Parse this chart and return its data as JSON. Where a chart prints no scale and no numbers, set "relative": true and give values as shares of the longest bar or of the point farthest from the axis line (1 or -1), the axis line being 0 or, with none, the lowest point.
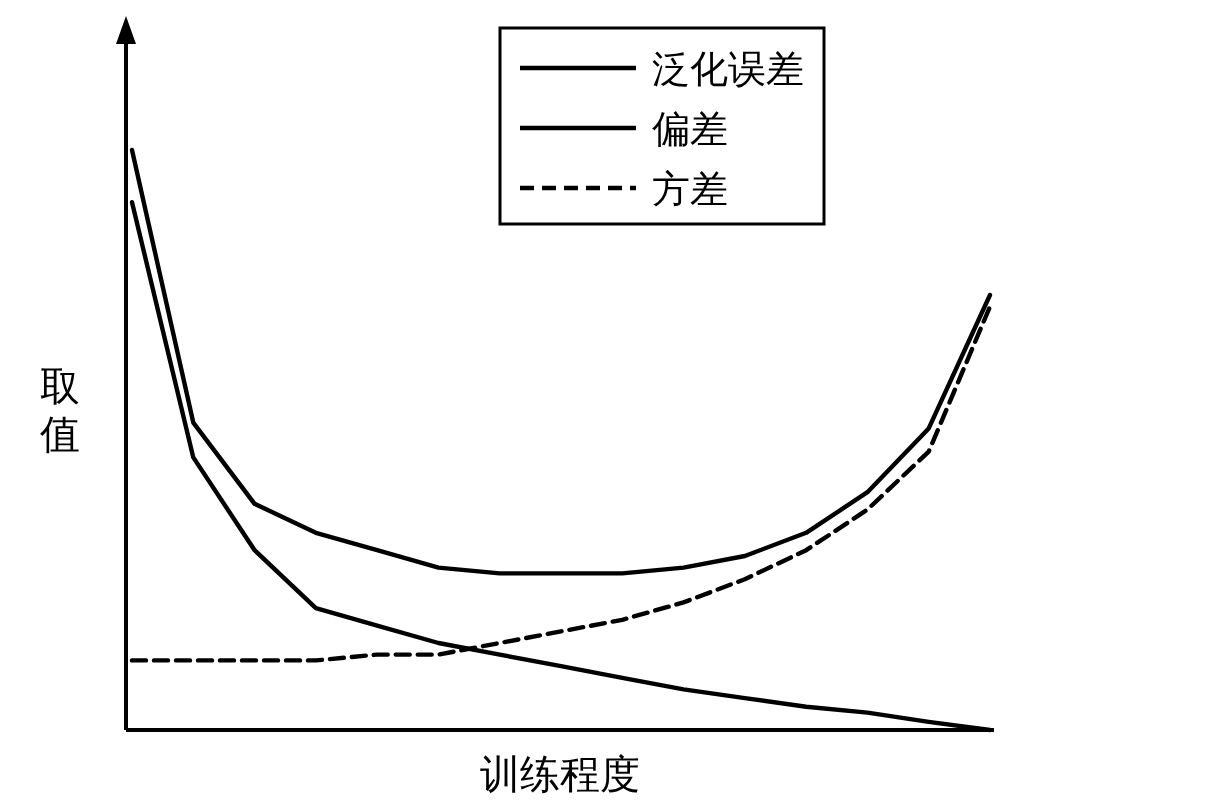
{
  "chart_data": {
    "type": "line",
    "relative": true,
    "xlabel": "训练程度",
    "ylabel": "取值",
    "legend": "top",
    "categories": [
      null,
      null,
      null,
      null,
      null,
      null,
      null,
      null,
      null,
      null,
      null,
      null,
      null,
      null,
      null
    ],
    "series": [
      {
        "name": "泛化误差",
        "color": "#000000",
        "line_style": "solid",
        "values": [
          1.0,
          0.53,
          0.39,
          0.34,
          0.31,
          0.28,
          0.27,
          0.27,
          0.27,
          0.28,
          0.3,
          0.34,
          0.41,
          0.52,
          0.75
        ]
      },
      {
        "name": "偏差",
        "color": "#000000",
        "line_style": "solid",
        "values": [
          0.91,
          0.47,
          0.31,
          0.21,
          0.18,
          0.15,
          0.13,
          0.11,
          0.09,
          0.07,
          0.055,
          0.04,
          0.03,
          0.014,
          0
        ]
      },
      {
        "name": "方差",
        "color": "#000000",
        "line_style": "dashed",
        "values": [
          0.12,
          0.12,
          0.12,
          0.12,
          0.13,
          0.13,
          0.15,
          0.17,
          0.19,
          0.22,
          0.26,
          0.31,
          0.38,
          0.48,
          0.73
        ]
      }
    ]
  }
}
